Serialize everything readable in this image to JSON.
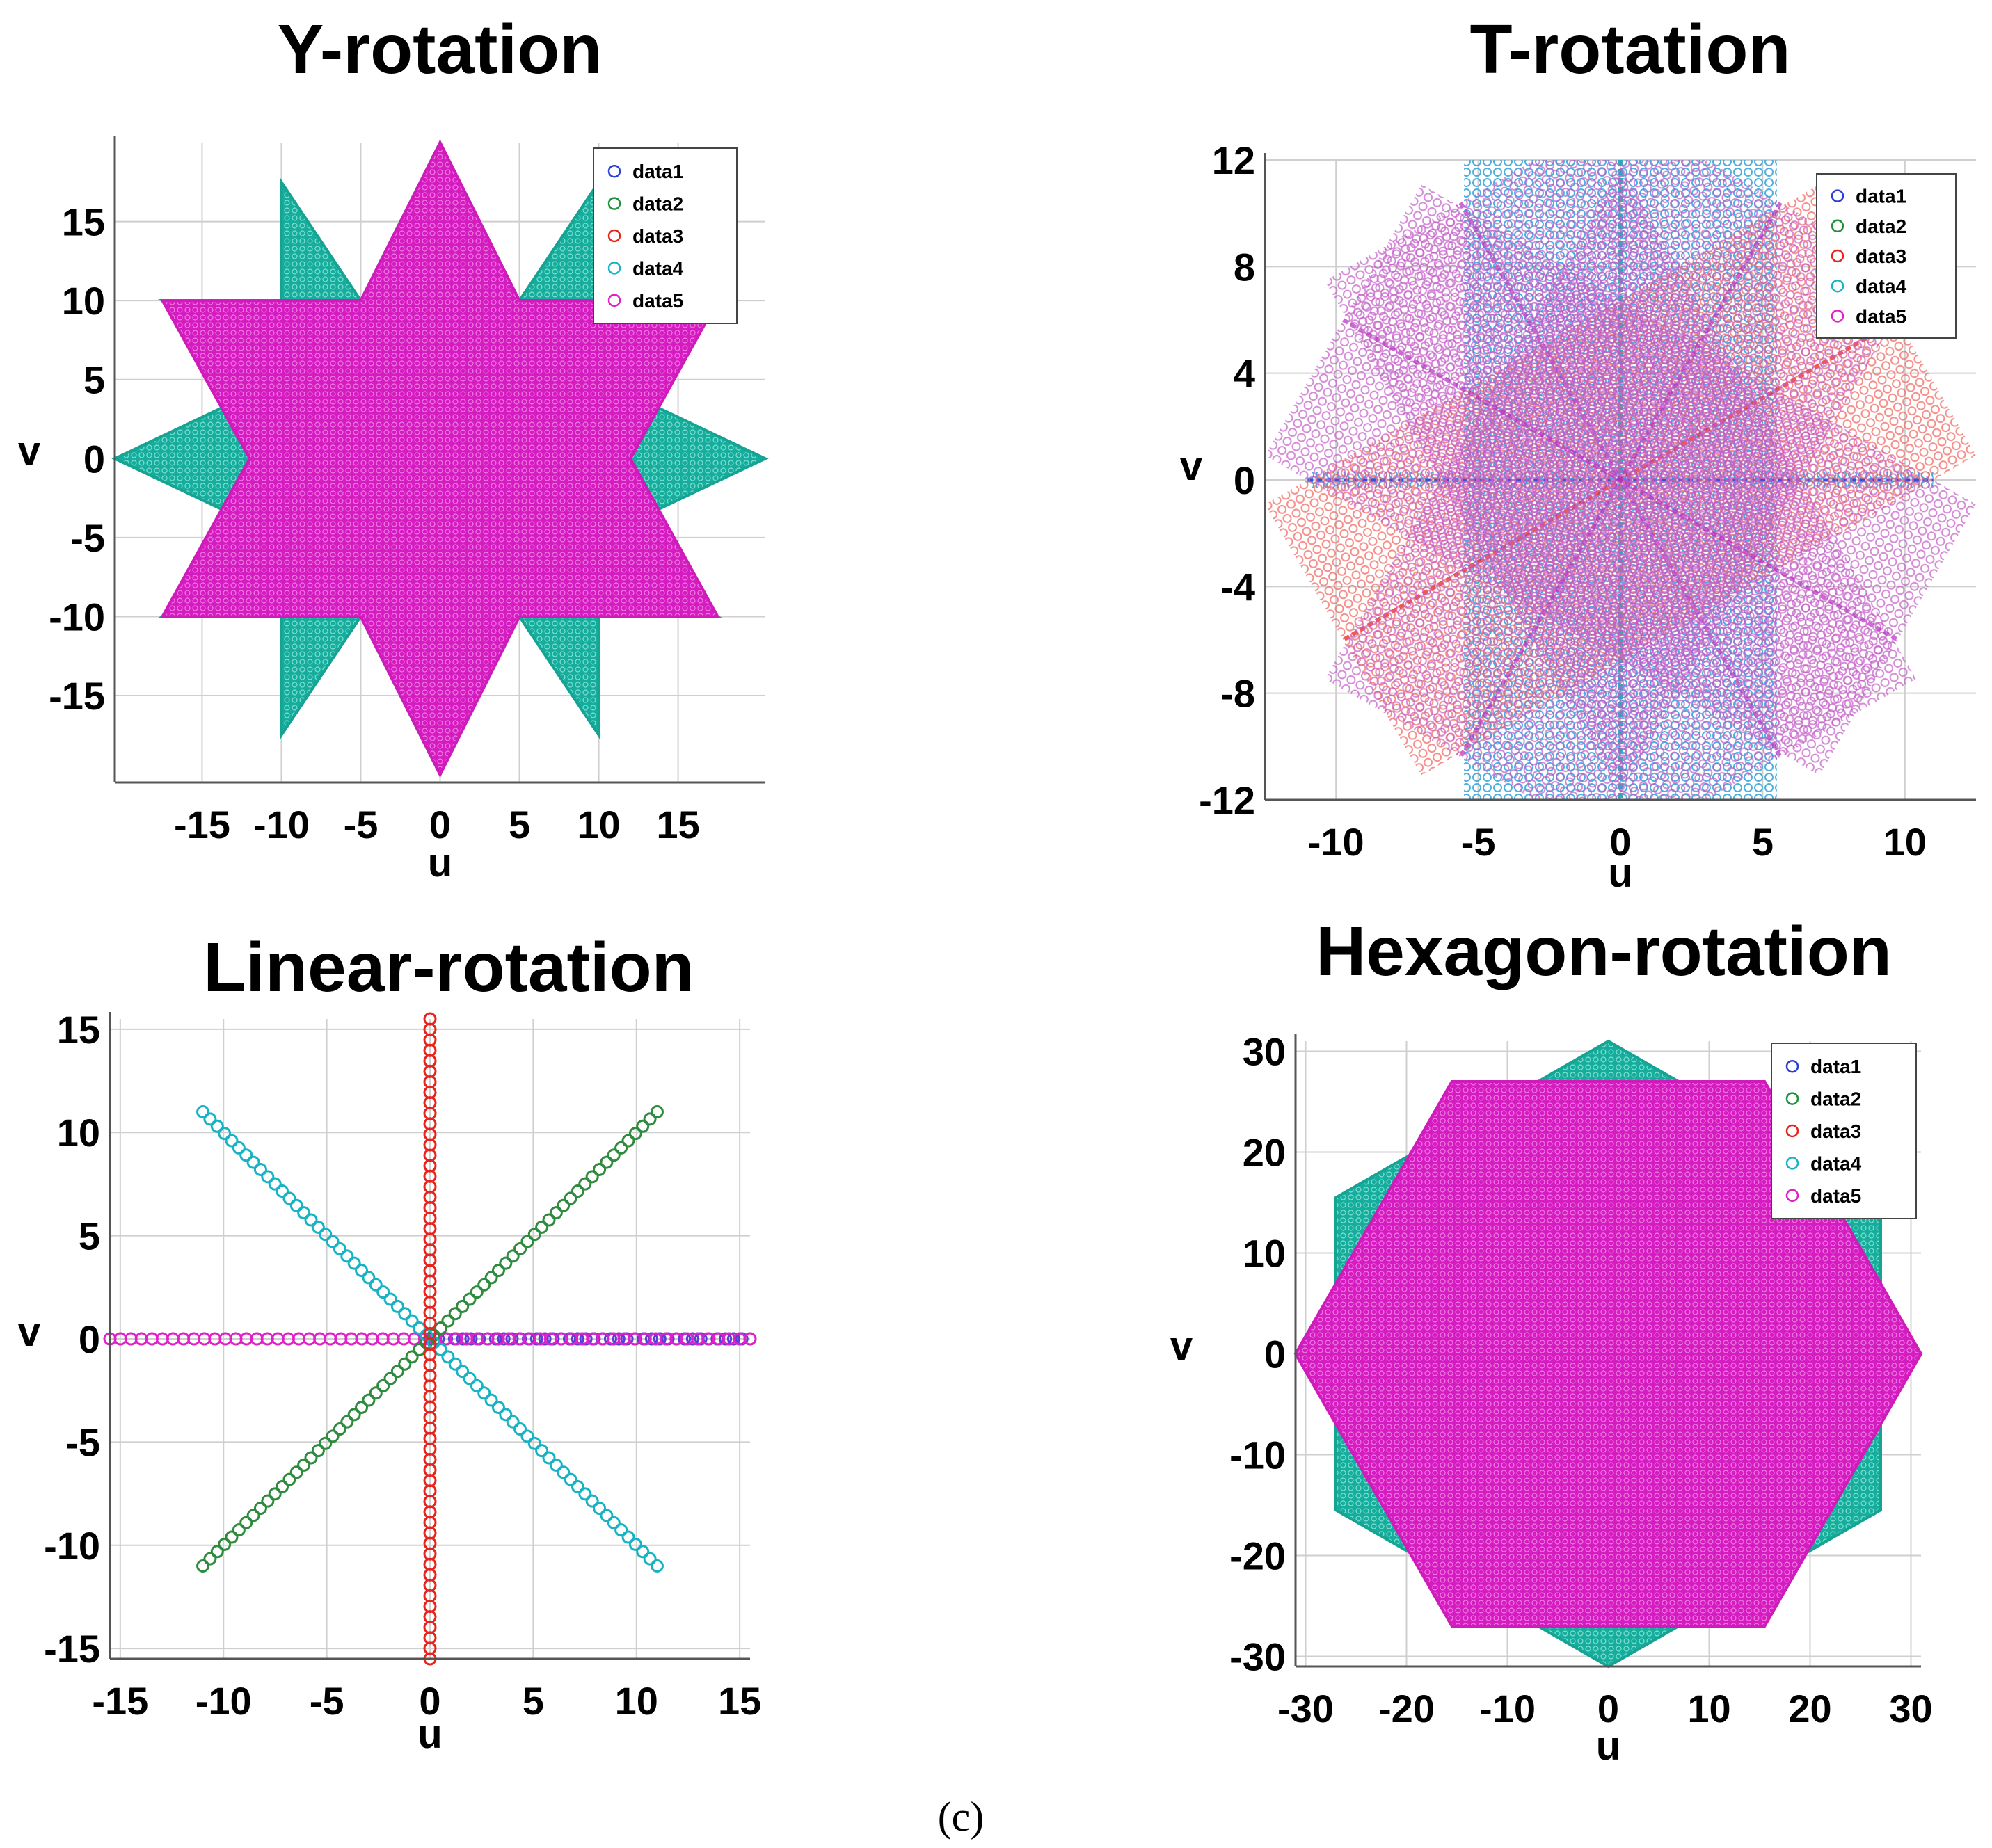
{
  "figure": {
    "caption": "(c)"
  },
  "colors": {
    "data1": "#2a3fd4",
    "data2": "#1f8f3a",
    "data3": "#e8231b",
    "data4": "#17b3c4",
    "data5": "#e020c8",
    "star_fill": "#17ad9c",
    "hex_fill": "#d51cc0"
  },
  "chart_data": [
    {
      "id": "y-rotation",
      "type": "scatter",
      "title": "Y-rotation",
      "xlabel": "u",
      "ylabel": "v",
      "xlim": [
        -20.5,
        20.5
      ],
      "ylim": [
        -20.5,
        20
      ],
      "xticks": [
        -15,
        -10,
        -5,
        0,
        5,
        10,
        15
      ],
      "xtick_labels": [
        "-15",
        "-10",
        "-5",
        "0",
        "5",
        "10",
        "15"
      ],
      "yticks": [
        15,
        10,
        5,
        0,
        -5,
        -10,
        -15
      ],
      "ytick_labels": [
        "15",
        "10",
        "5",
        "0",
        "-5",
        "-10",
        "-15"
      ],
      "legend": [
        "data1",
        "data2",
        "data3",
        "data4",
        "data5"
      ],
      "legend_position": "top-right",
      "series": [
        {
          "name": "data4",
          "shape": "star-8-teal",
          "polygon": [
            [
              0,
              20
            ],
            [
              5,
              10
            ],
            [
              10,
              17.5
            ],
            [
              10,
              10
            ],
            [
              17.5,
              10
            ],
            [
              10,
              5
            ],
            [
              20.5,
              0
            ],
            [
              10,
              -5
            ],
            [
              17.5,
              -10
            ],
            [
              10,
              -10
            ],
            [
              10,
              -17.5
            ],
            [
              5,
              -10
            ],
            [
              0,
              -20
            ],
            [
              -5,
              -10
            ],
            [
              -10,
              -17.5
            ],
            [
              -10,
              -10
            ],
            [
              -17.5,
              -10
            ],
            [
              -10,
              -5
            ],
            [
              -20.5,
              0
            ],
            [
              -10,
              5
            ],
            [
              -17.5,
              10
            ],
            [
              -10,
              10
            ],
            [
              -10,
              17.5
            ],
            [
              -5,
              10
            ]
          ]
        },
        {
          "name": "data5",
          "shape": "star-magenta",
          "polygon": [
            [
              0,
              20
            ],
            [
              5,
              10
            ],
            [
              17.5,
              10
            ],
            [
              12,
              0
            ],
            [
              17.5,
              -10
            ],
            [
              5,
              -10
            ],
            [
              0,
              -20
            ],
            [
              -5,
              -10
            ],
            [
              -17.5,
              -10
            ],
            [
              -12,
              0
            ],
            [
              -17.5,
              10
            ],
            [
              -5,
              10
            ]
          ]
        }
      ]
    },
    {
      "id": "t-rotation",
      "type": "scatter",
      "title": "T-rotation",
      "xlabel": "u",
      "ylabel": "v",
      "xlim": [
        -12.5,
        12.5
      ],
      "ylim": [
        -12,
        12
      ],
      "xticks": [
        -10,
        -5,
        0,
        5,
        10
      ],
      "xtick_labels": [
        "-10",
        "-5",
        "0",
        "5",
        "10"
      ],
      "yticks": [
        12,
        8,
        4,
        0,
        -4,
        -8,
        -12
      ],
      "ytick_labels": [
        "12",
        "8",
        "4",
        "0",
        "-4",
        "-8",
        "-12"
      ],
      "legend": [
        "data1",
        "data2",
        "data3",
        "data4",
        "data5"
      ],
      "legend_position": "top-right",
      "series": [
        {
          "name": "data1",
          "rect": {
            "x": [
              -11,
              11
            ],
            "y": [
              -0.3,
              0.3
            ]
          },
          "angle": 0
        },
        {
          "name": "data4",
          "rect": {
            "x": [
              -5.5,
              5.5
            ],
            "y": [
              -12,
              12
            ]
          },
          "angle": 0
        },
        {
          "name": "data3",
          "rect": {
            "x": [
              -5.5,
              5.5
            ],
            "y": [
              -12,
              12
            ]
          },
          "angle": -60
        },
        {
          "name": "data5",
          "rect": {
            "x": [
              -5.5,
              5.5
            ],
            "y": [
              -12,
              12
            ]
          },
          "angle": 30
        },
        {
          "name": "data5",
          "rect": {
            "x": [
              -5.5,
              5.5
            ],
            "y": [
              -12,
              12
            ]
          },
          "angle": -30
        },
        {
          "name": "data5",
          "rect": {
            "x": [
              -5.5,
              5.5
            ],
            "y": [
              -12,
              12
            ]
          },
          "angle": 60
        }
      ]
    },
    {
      "id": "linear-rotation",
      "type": "scatter",
      "title": "Linear-rotation",
      "xlabel": "u",
      "ylabel": "v",
      "xlim": [
        -15.5,
        15.5
      ],
      "ylim": [
        -15.5,
        15.5
      ],
      "xticks": [
        -15,
        -10,
        -5,
        0,
        5,
        10,
        15
      ],
      "xtick_labels": [
        "-15",
        "-10",
        "-5",
        "0",
        "5",
        "10",
        "15"
      ],
      "yticks": [
        15,
        10,
        5,
        0,
        -5,
        -10,
        -15
      ],
      "ytick_labels": [
        "15",
        "10",
        "5",
        "0",
        "-5",
        "-10",
        "-15"
      ],
      "series": [
        {
          "name": "data1",
          "from": [
            0,
            0
          ],
          "to": [
            15.5,
            0
          ],
          "points": 40
        },
        {
          "name": "data5",
          "from": [
            -15.5,
            0
          ],
          "to": [
            15.5,
            0
          ],
          "points": 62
        },
        {
          "name": "data2",
          "from": [
            -11,
            -11
          ],
          "to": [
            11,
            11
          ],
          "points": 64
        },
        {
          "name": "data4",
          "from": [
            -11,
            11
          ],
          "to": [
            11,
            -11
          ],
          "points": 64
        },
        {
          "name": "data3",
          "from": [
            0,
            -15.5
          ],
          "to": [
            0,
            15.5
          ],
          "points": 62
        }
      ]
    },
    {
      "id": "hexagon-rotation",
      "type": "scatter",
      "title": "Hexagon-rotation",
      "xlabel": "u",
      "ylabel": "v",
      "xlim": [
        -31,
        31
      ],
      "ylim": [
        -31,
        31
      ],
      "xticks": [
        -30,
        -20,
        -10,
        0,
        10,
        20,
        30
      ],
      "xtick_labels": [
        "-30",
        "-20",
        "-10",
        "0",
        "10",
        "20",
        "30"
      ],
      "yticks": [
        30,
        20,
        10,
        0,
        -10,
        -20,
        -30
      ],
      "ytick_labels": [
        "30",
        "20",
        "10",
        "0",
        "-10",
        "-20",
        "-30"
      ],
      "legend": [
        "data1",
        "data2",
        "data3",
        "data4",
        "data5"
      ],
      "legend_position": "top-right",
      "series": [
        {
          "name": "data4",
          "shape": "hexagon-teal",
          "polygon": [
            [
              0,
              31
            ],
            [
              27,
              15.5
            ],
            [
              27,
              -15.5
            ],
            [
              0,
              -31
            ],
            [
              -27,
              -15.5
            ],
            [
              -27,
              15.5
            ]
          ]
        },
        {
          "name": "data5",
          "shape": "hexagon-magenta",
          "polygon": [
            [
              -15.5,
              27
            ],
            [
              15.5,
              27
            ],
            [
              31,
              0
            ],
            [
              15.5,
              -27
            ],
            [
              -15.5,
              -27
            ],
            [
              -31,
              0
            ]
          ]
        }
      ]
    }
  ]
}
